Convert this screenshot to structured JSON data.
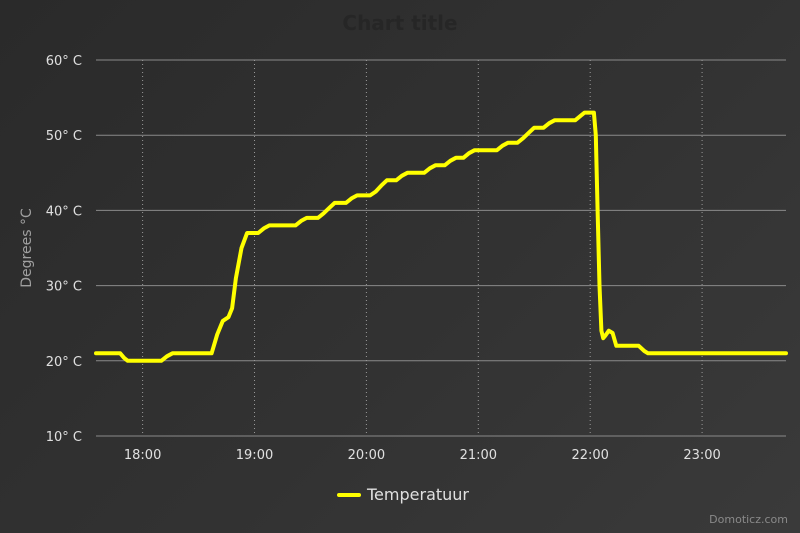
{
  "chart_data": {
    "type": "line",
    "title": "Chart title",
    "ylabel": "Degrees °C",
    "xlabel": "",
    "ylim": [
      10,
      60
    ],
    "xlim": [
      "17:35",
      "23:45"
    ],
    "y_ticks": [
      10,
      20,
      30,
      40,
      50,
      60
    ],
    "y_tick_labels": [
      "10° C",
      "20° C",
      "30° C",
      "40° C",
      "50° C",
      "60° C"
    ],
    "x_ticks": [
      "18:00",
      "19:00",
      "20:00",
      "21:00",
      "22:00",
      "23:00"
    ],
    "grid": {
      "horizontal": "solid",
      "vertical": "dotted"
    },
    "legend_position": "bottom-center",
    "series": [
      {
        "name": "Temperatuur",
        "color": "#ffff00",
        "points": [
          [
            "17:35",
            21
          ],
          [
            "17:48",
            21
          ],
          [
            "17:50",
            20.4
          ],
          [
            "17:52",
            20
          ],
          [
            "18:10",
            20
          ],
          [
            "18:13",
            20.6
          ],
          [
            "18:16",
            21
          ],
          [
            "18:37",
            21
          ],
          [
            "18:40",
            23.5
          ],
          [
            "18:43",
            25.3
          ],
          [
            "18:46",
            25.8
          ],
          [
            "18:48",
            27
          ],
          [
            "18:50",
            31
          ],
          [
            "18:53",
            35
          ],
          [
            "18:56",
            37
          ],
          [
            "19:02",
            37
          ],
          [
            "19:05",
            37.6
          ],
          [
            "19:08",
            38
          ],
          [
            "19:22",
            38
          ],
          [
            "19:25",
            38.6
          ],
          [
            "19:28",
            39
          ],
          [
            "19:34",
            39
          ],
          [
            "19:37",
            39.6
          ],
          [
            "19:40",
            40.3
          ],
          [
            "19:43",
            41
          ],
          [
            "19:49",
            41
          ],
          [
            "19:52",
            41.6
          ],
          [
            "19:55",
            42
          ],
          [
            "20:02",
            42
          ],
          [
            "20:05",
            42.5
          ],
          [
            "20:08",
            43.3
          ],
          [
            "20:11",
            44
          ],
          [
            "20:16",
            44
          ],
          [
            "20:19",
            44.6
          ],
          [
            "20:22",
            45
          ],
          [
            "20:31",
            45
          ],
          [
            "20:34",
            45.6
          ],
          [
            "20:37",
            46
          ],
          [
            "20:42",
            46
          ],
          [
            "20:45",
            46.6
          ],
          [
            "20:48",
            47
          ],
          [
            "20:52",
            47
          ],
          [
            "20:55",
            47.6
          ],
          [
            "20:58",
            48
          ],
          [
            "21:10",
            48
          ],
          [
            "21:13",
            48.6
          ],
          [
            "21:16",
            49
          ],
          [
            "21:21",
            49
          ],
          [
            "21:24",
            49.6
          ],
          [
            "21:27",
            50.3
          ],
          [
            "21:30",
            51
          ],
          [
            "21:35",
            51
          ],
          [
            "21:38",
            51.6
          ],
          [
            "21:41",
            52
          ],
          [
            "21:52",
            52
          ],
          [
            "21:55",
            52.6
          ],
          [
            "21:57",
            53
          ],
          [
            "22:02",
            53
          ],
          [
            "22:03",
            50
          ],
          [
            "22:04",
            40
          ],
          [
            "22:05",
            30
          ],
          [
            "22:06",
            24
          ],
          [
            "22:07",
            23
          ],
          [
            "22:08",
            23.3
          ],
          [
            "22:10",
            24
          ],
          [
            "22:12",
            23.7
          ],
          [
            "22:14",
            22
          ],
          [
            "22:26",
            22
          ],
          [
            "22:29",
            21.3
          ],
          [
            "22:31",
            21
          ],
          [
            "23:45",
            21
          ]
        ]
      }
    ]
  },
  "credits": "Domoticz.com"
}
